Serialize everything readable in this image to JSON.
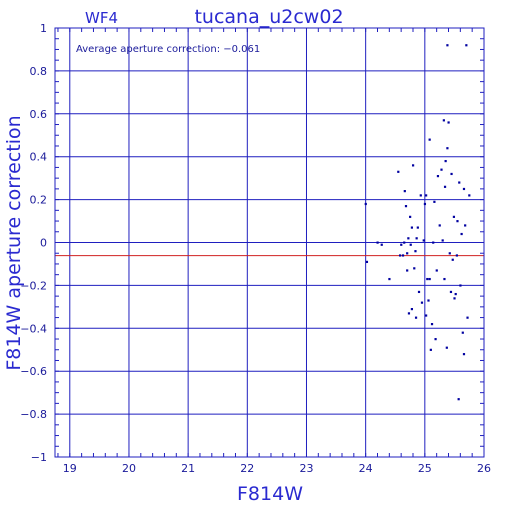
{
  "chart_data": {
    "type": "scatter",
    "chip_label": "WF4",
    "title": "tucana_u2cw02",
    "annotation": "Average aperture correction: −0.061",
    "xlabel": "F814W",
    "ylabel": "F814W aperture correction",
    "xlim": [
      18.75,
      26
    ],
    "ylim": [
      -1,
      1
    ],
    "x_ticks": [
      19,
      20,
      21,
      22,
      23,
      24,
      25,
      26
    ],
    "x_tick_labels": [
      "19",
      "20",
      "21",
      "22",
      "23",
      "24",
      "25",
      "26"
    ],
    "y_ticks": [
      -1,
      -0.8,
      -0.6,
      -0.4,
      -0.2,
      0,
      0.2,
      0.4,
      0.6,
      0.8,
      1
    ],
    "y_tick_labels": [
      "−1",
      "−0.8",
      "−0.6",
      "−0.4",
      "−0.2",
      "0",
      "0.2",
      "0.4",
      "0.6",
      "0.8",
      "1"
    ],
    "grid": true,
    "reference_line": -0.061,
    "colors": {
      "axis": "#1f1fbf",
      "points": "#0000a0",
      "reference": "#d02020"
    },
    "points": [
      [
        24.0,
        0.18
      ],
      [
        24.02,
        -0.09
      ],
      [
        24.2,
        0.0
      ],
      [
        24.27,
        -0.01
      ],
      [
        24.4,
        -0.17
      ],
      [
        24.55,
        0.33
      ],
      [
        24.58,
        -0.06
      ],
      [
        24.6,
        -0.01
      ],
      [
        24.63,
        -0.06
      ],
      [
        24.65,
        0.0
      ],
      [
        24.66,
        0.24
      ],
      [
        24.68,
        0.17
      ],
      [
        24.7,
        -0.05
      ],
      [
        24.7,
        -0.13
      ],
      [
        24.72,
        0.02
      ],
      [
        24.73,
        -0.33
      ],
      [
        24.75,
        0.12
      ],
      [
        24.76,
        -0.01
      ],
      [
        24.78,
        -0.31
      ],
      [
        24.78,
        0.07
      ],
      [
        24.8,
        0.36
      ],
      [
        24.82,
        -0.12
      ],
      [
        24.84,
        -0.04
      ],
      [
        24.85,
        -0.35
      ],
      [
        24.86,
        0.02
      ],
      [
        24.88,
        0.07
      ],
      [
        24.9,
        -0.23
      ],
      [
        24.93,
        0.22
      ],
      [
        24.95,
        -0.28
      ],
      [
        24.98,
        0.01
      ],
      [
        25.0,
        0.18
      ],
      [
        25.02,
        0.22
      ],
      [
        25.02,
        -0.34
      ],
      [
        25.04,
        -0.17
      ],
      [
        25.06,
        -0.27
      ],
      [
        25.08,
        0.48
      ],
      [
        25.08,
        -0.17
      ],
      [
        25.1,
        -0.5
      ],
      [
        25.12,
        -0.38
      ],
      [
        25.14,
        0.0
      ],
      [
        25.16,
        0.19
      ],
      [
        25.18,
        -0.45
      ],
      [
        25.2,
        -0.13
      ],
      [
        25.22,
        0.31
      ],
      [
        25.25,
        0.08
      ],
      [
        25.28,
        0.34
      ],
      [
        25.3,
        0.01
      ],
      [
        25.32,
        0.57
      ],
      [
        25.33,
        -0.17
      ],
      [
        25.34,
        0.26
      ],
      [
        25.35,
        0.38
      ],
      [
        25.37,
        -0.49
      ],
      [
        25.38,
        0.44
      ],
      [
        25.38,
        0.92
      ],
      [
        25.4,
        0.56
      ],
      [
        25.42,
        -0.05
      ],
      [
        25.44,
        -0.23
      ],
      [
        25.45,
        0.32
      ],
      [
        25.47,
        -0.08
      ],
      [
        25.49,
        0.12
      ],
      [
        25.5,
        -0.26
      ],
      [
        25.52,
        -0.24
      ],
      [
        25.54,
        -0.06
      ],
      [
        25.55,
        0.1
      ],
      [
        25.57,
        -0.73
      ],
      [
        25.58,
        0.28
      ],
      [
        25.6,
        -0.2
      ],
      [
        25.62,
        0.04
      ],
      [
        25.64,
        -0.42
      ],
      [
        25.66,
        0.25
      ],
      [
        25.66,
        -0.52
      ],
      [
        25.68,
        0.08
      ],
      [
        25.7,
        0.92
      ],
      [
        25.72,
        -0.35
      ],
      [
        25.75,
        0.22
      ]
    ]
  }
}
